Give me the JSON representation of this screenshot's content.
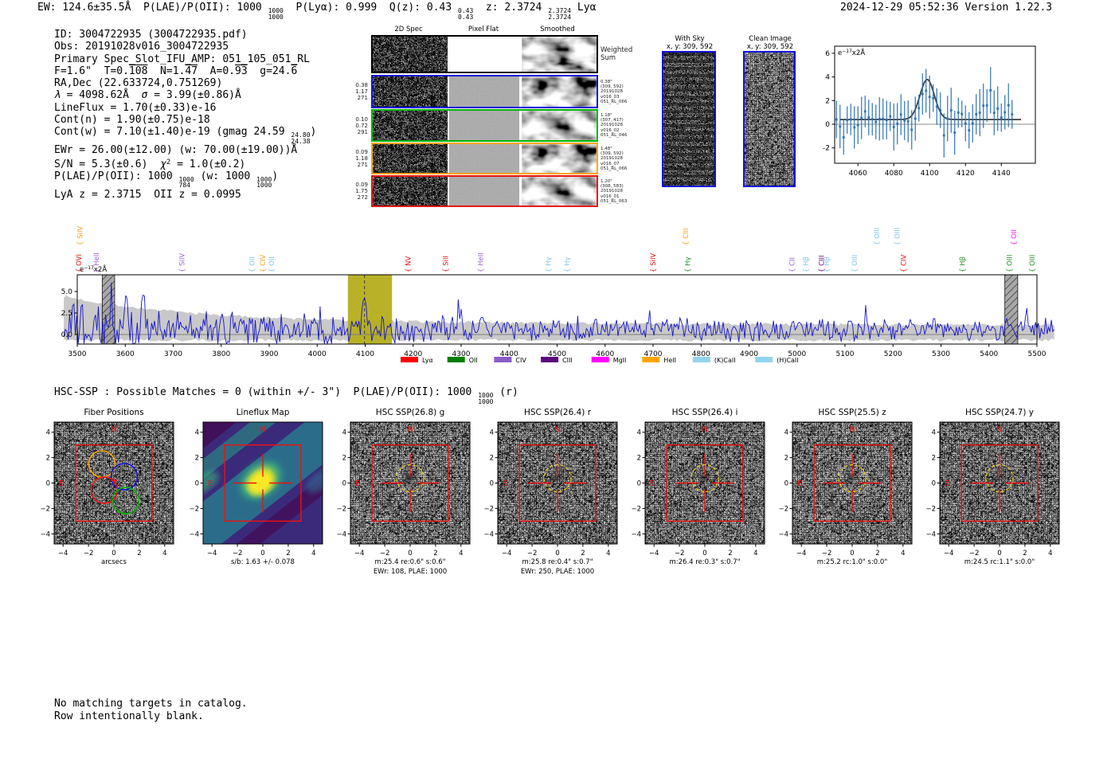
{
  "header": {
    "left_segments": [
      {
        "t": "EW: 124.6±35.5Å  P(LAE)/P(OII): 1000 "
      },
      {
        "frac": [
          "1000",
          "1000"
        ]
      },
      {
        "t": "  P(Lyα): 0.999  Q(z): 0.43 "
      },
      {
        "frac": [
          "0.43",
          "0.43"
        ]
      },
      {
        "t": "  z: 2.3724 "
      },
      {
        "frac": [
          "2.3724",
          "2.3724"
        ]
      },
      {
        "t": " Lyα"
      }
    ],
    "right": "2024-12-29 05:52:36  Version 1.22.3"
  },
  "info": {
    "lines": [
      [
        {
          "t": "ID: 3004722935 (3004722935.pdf)"
        }
      ],
      [
        {
          "t": "Obs: 20191028v016_3004722935"
        }
      ],
      [
        {
          "t": "Primary Spec_Slot_IFU_AMP: 051_105_051_RL"
        }
      ],
      [
        {
          "t": "F=1.6\"  T=0."
        },
        {
          "o": "108"
        },
        {
          "t": "  N=1."
        },
        {
          "o": "47"
        },
        {
          "t": "  A=0."
        },
        {
          "o": "93"
        },
        {
          "t": "  g=24."
        },
        {
          "o": "6"
        }
      ],
      [
        {
          "t": "RA,Dec (22.633724,0.751269)"
        }
      ],
      [
        {
          "i": "λ"
        },
        {
          "t": " = 4098.62Å  "
        },
        {
          "i": "σ"
        },
        {
          "t": " = 3.99(±0.86)Å"
        }
      ],
      [
        {
          "t": "LineFlux = 1.70(±0.33)e-16"
        }
      ],
      [
        {
          "t": "Cont(n) = 1.90(±0.75)e-18"
        }
      ],
      [
        {
          "t": "Cont(w) = 7.10(±1.40)e-19 (gmag 24.59 "
        },
        {
          "frac": [
            "24.80",
            "24.38"
          ]
        },
        {
          "t": ")"
        }
      ],
      [
        {
          "t": "EWr = 26.00(±12.00) (w: 70.00(±19.00))Å"
        }
      ],
      [
        {
          "t": "S/N = 5.3(±0.6)  "
        },
        {
          "i": "χ"
        },
        {
          "sup": "2"
        },
        {
          "t": " = 1.0(±0.2)"
        }
      ],
      [
        {
          "t": "P(LAE)/P(OII): 1000 "
        },
        {
          "frac": [
            "1000",
            "784"
          ]
        },
        {
          "t": " (w: 1000 "
        },
        {
          "frac": [
            "1000",
            "1000"
          ]
        },
        {
          "t": ")"
        }
      ],
      [
        {
          "t": "LyA z = 2.3715  OII z = 0.0995"
        }
      ]
    ]
  },
  "spec2d": {
    "col_headers": [
      "2D Spec",
      "Pixel Flat",
      "Smoothed"
    ],
    "rows": [
      {
        "color": "#000000",
        "left": [],
        "right": [
          "Weighted",
          "Sum"
        ],
        "big_right": true,
        "flat_white": true
      },
      {
        "color": "#1111dd",
        "left": [
          "0.38",
          "1.17",
          "271"
        ],
        "right": [
          "0.38\"",
          "(309, 592)",
          "20191028",
          "v016_03",
          "051_RL_066"
        ]
      },
      {
        "color": "#00b800",
        "left": [
          "0.10",
          "0.72",
          "291"
        ],
        "right": [
          "1.18\"",
          "(307, 417)",
          "20191028",
          "v016_02",
          "051_RL_046"
        ]
      },
      {
        "color": "#ffa500",
        "left": [
          "0.09",
          "1.18",
          "271"
        ],
        "right": [
          "1.48\"",
          "(309, 592)",
          "20191028",
          "v016_07",
          "051_RL_066"
        ]
      },
      {
        "color": "#ee1111",
        "left": [
          "0.09",
          "1.75",
          "272"
        ],
        "right": [
          "1.20\"",
          "(308, 583)",
          "20191028",
          "v016_01",
          "051_RL_063"
        ]
      }
    ]
  },
  "sky_panels": [
    {
      "title": "With Sky",
      "coords": "x, y: 309, 592"
    },
    {
      "title": "Clean Image",
      "coords": "x, y: 309, 592"
    }
  ],
  "hsc_line_segments": [
    {
      "t": "HSC-SSP : Possible Matches = 0 (within +/- 3\")  P(LAE)/P(OII): 1000 "
    },
    {
      "frac": [
        "1000",
        "1000"
      ]
    },
    {
      "t": " (r)"
    }
  ],
  "footer": {
    "lines": [
      "No matching targets in catalog.",
      "Row intentionally blank."
    ]
  },
  "chart_data": [
    {
      "id": "zoom_spectrum",
      "type": "line",
      "unit_label": "e−17x2Å",
      "xticks": [
        4060,
        4080,
        4100,
        4120,
        4140
      ],
      "yticks": [
        -2,
        0,
        2,
        4,
        6
      ],
      "xlim": [
        4047,
        4159
      ],
      "ylim": [
        -3.3,
        6.6
      ],
      "gaussian": {
        "mu": 4098.62,
        "sigma": 3.99,
        "amplitude": 3.4,
        "baseline": 0.4
      },
      "point_color": "#2e74b5",
      "fit_color": "#3c3c3c"
    },
    {
      "id": "main_spectrum",
      "type": "line",
      "unit_label": "e−17x2Å",
      "xlim": [
        3470,
        5540
      ],
      "ylim": [
        -1.1,
        6.9
      ],
      "xticks": [
        3500,
        3600,
        3700,
        3800,
        3900,
        4000,
        4100,
        4200,
        4300,
        4400,
        4500,
        4600,
        4700,
        4800,
        4900,
        5000,
        5100,
        5200,
        5300,
        5400,
        5500
      ],
      "yticks": [
        0.0,
        2.5,
        5.0
      ],
      "line_color": "#1515cc",
      "band_color": "#bbbbbb",
      "highlight": {
        "x0": 4064,
        "x1": 4156,
        "center": 4098.62,
        "color": "#b5ae1c"
      },
      "hatch_bands": [
        [
          3552,
          3578
        ],
        [
          5433,
          5460
        ]
      ],
      "emission_labels": [
        {
          "text": "SiIV",
          "color": "#f0a118",
          "wavelength": 3506,
          "level": 1
        },
        {
          "text": "CIII",
          "color": "#f0a118",
          "wavelength": 4768,
          "level": 1
        },
        {
          "text": "OIII",
          "color": "#7fc4e8",
          "wavelength": 5166,
          "level": 1
        },
        {
          "text": "OIII",
          "color": "#7fc4e8",
          "wavelength": 5209,
          "level": 1
        },
        {
          "text": "OII",
          "color": "#f018f0",
          "wavelength": 5452,
          "level": 1
        },
        {
          "text": "OVI",
          "color": "#e01010",
          "wavelength": 3503,
          "level": 0
        },
        {
          "text": "HeII",
          "color": "#9664c8",
          "wavelength": 3540,
          "level": 0
        },
        {
          "text": "SiIV",
          "color": "#9664c8",
          "wavelength": 3718,
          "level": 0
        },
        {
          "text": "OII",
          "color": "#7fc4e8",
          "wavelength": 3864,
          "level": 0
        },
        {
          "text": "CIV",
          "color": "#f0a118",
          "wavelength": 3887,
          "level": 0
        },
        {
          "text": "OII",
          "color": "#7fc4e8",
          "wavelength": 3905,
          "level": 0
        },
        {
          "text": "NV",
          "color": "#e01010",
          "wavelength": 4190,
          "level": 0
        },
        {
          "text": "SiII",
          "color": "#e01010",
          "wavelength": 4268,
          "level": 0
        },
        {
          "text": "HeII",
          "color": "#9664c8",
          "wavelength": 4341,
          "level": 0
        },
        {
          "text": "Hγ",
          "color": "#7fc4e8",
          "wavelength": 4482,
          "level": 0
        },
        {
          "text": "Hγ",
          "color": "#7fc4e8",
          "wavelength": 4521,
          "level": 0
        },
        {
          "text": "SiIV",
          "color": "#e01010",
          "wavelength": 4700,
          "level": 0
        },
        {
          "text": "Hγ",
          "color": "#1e8c1e",
          "wavelength": 4772,
          "level": 0
        },
        {
          "text": "CII",
          "color": "#9664c8",
          "wavelength": 4990,
          "level": 0
        },
        {
          "text": "Hβ",
          "color": "#7fc4e8",
          "wavelength": 5019,
          "level": 0
        },
        {
          "text": "CIII",
          "color": "#6a0d83",
          "wavelength": 5051,
          "level": 0
        },
        {
          "text": "Hβ",
          "color": "#7fc4e8",
          "wavelength": 5062,
          "level": 0
        },
        {
          "text": "OIII",
          "color": "#7fc4e8",
          "wavelength": 5120,
          "level": 0
        },
        {
          "text": "CIV",
          "color": "#e01010",
          "wavelength": 5222,
          "level": 0
        },
        {
          "text": "Hβ",
          "color": "#1e8c1e",
          "wavelength": 5345,
          "level": 0
        },
        {
          "text": "OIII",
          "color": "#1e8c1e",
          "wavelength": 5443,
          "level": 0
        },
        {
          "text": "OIII",
          "color": "#1e8c1e",
          "wavelength": 5490,
          "level": 0
        }
      ],
      "legend": [
        {
          "label": "Lyα",
          "color": "#ff0000"
        },
        {
          "label": "OII",
          "color": "#008000"
        },
        {
          "label": "CIV",
          "color": "#8a5cc8"
        },
        {
          "label": "CIII",
          "color": "#5c0a7a"
        },
        {
          "label": "MgII",
          "color": "#ff00ff"
        },
        {
          "label": "HeII",
          "color": "#ffa500"
        },
        {
          "label": "(K)CaII",
          "color": "#92d4ee"
        },
        {
          "label": "(H)CaII",
          "color": "#92d4ee"
        }
      ]
    },
    {
      "id": "cutouts",
      "type": "table-of-images",
      "xticks": [
        -4,
        -2,
        0,
        2,
        4
      ],
      "yticks": [
        4,
        2,
        0,
        -2,
        -4
      ],
      "compass_n": "N",
      "compass_e": "E",
      "marker_color": "#ee1111",
      "aperture_color": "#e6c619",
      "panels": [
        {
          "title": "Fiber Positions",
          "kind": "fiber",
          "subs": [
            "arcsecs"
          ],
          "fibers": [
            {
              "color": "#ffa500"
            },
            {
              "color": "#1111dd"
            },
            {
              "color": "#ee1111"
            },
            {
              "color": "#00b800"
            }
          ]
        },
        {
          "title": "Lineflux Map",
          "kind": "viridis",
          "subs": [
            "s/b: 1.63 +/- 0.078"
          ]
        },
        {
          "title": "HSC SSP(26.8) g",
          "kind": "hsc",
          "smudge": 0.75,
          "subs": [
            "m:25.4 re:0.6\" s:0.6\"",
            "EWr: 108, PLAE: 1000"
          ]
        },
        {
          "title": "HSC SSP(26.4) r",
          "kind": "hsc",
          "smudge": 0.6,
          "subs": [
            "m:25.8 re:0.4\" s:0.7\"",
            "EWr: 250, PLAE: 1000"
          ]
        },
        {
          "title": "HSC SSP(26.4) i",
          "kind": "hsc",
          "smudge": 0.55,
          "subs": [
            "m:26.4 re:0.3\" s:0.7\""
          ]
        },
        {
          "title": "HSC SSP(25.5) z",
          "kind": "hsc",
          "smudge": 0.45,
          "subs": [
            "m:25.2 rc:1.0\" s:0.0\""
          ]
        },
        {
          "title": "HSC SSP(24.7) y",
          "kind": "hsc",
          "smudge": 0.4,
          "subs": [
            "m:24.5 rc:1.1\" s:0.0\""
          ]
        }
      ]
    }
  ]
}
